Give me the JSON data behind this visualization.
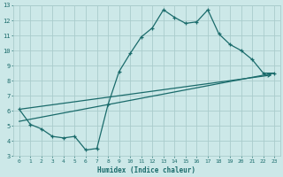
{
  "xlabel": "Humidex (Indice chaleur)",
  "ylabel": "",
  "bg_color": "#cce8e8",
  "grid_color": "#aacccc",
  "line_color": "#1a6b6b",
  "xlim": [
    -0.5,
    23.5
  ],
  "ylim": [
    3,
    13
  ],
  "xticks": [
    0,
    1,
    2,
    3,
    4,
    5,
    6,
    7,
    8,
    9,
    10,
    11,
    12,
    13,
    14,
    15,
    16,
    17,
    18,
    19,
    20,
    21,
    22,
    23
  ],
  "yticks": [
    3,
    4,
    5,
    6,
    7,
    8,
    9,
    10,
    11,
    12,
    13
  ],
  "curve1_x": [
    0,
    1,
    2,
    3,
    4,
    5,
    6,
    7,
    8,
    9,
    10,
    11,
    12,
    13,
    14,
    15,
    16,
    17,
    18,
    19,
    20,
    21,
    22,
    23
  ],
  "curve1_y": [
    6.1,
    5.1,
    4.8,
    4.3,
    4.2,
    4.3,
    3.4,
    3.5,
    6.4,
    8.6,
    9.8,
    10.9,
    11.5,
    12.7,
    12.2,
    11.8,
    11.9,
    12.7,
    11.1,
    10.4,
    10.0,
    9.4,
    8.5,
    8.5
  ],
  "curve2_x": [
    0,
    23
  ],
  "curve2_y": [
    5.3,
    8.5
  ],
  "curve3_x": [
    0,
    23
  ],
  "curve3_y": [
    6.1,
    8.4
  ],
  "figsize": [
    3.2,
    2.0
  ],
  "dpi": 100
}
